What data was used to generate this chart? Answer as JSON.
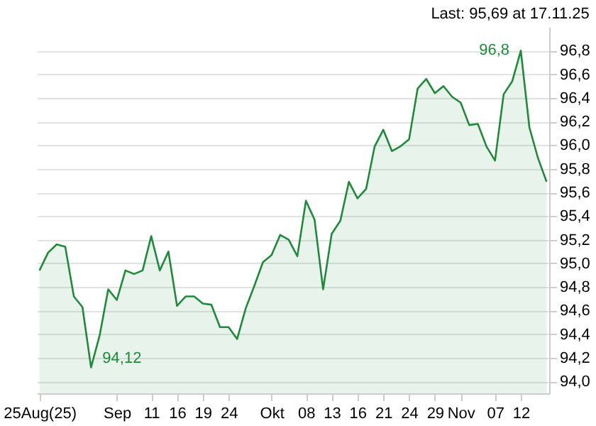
{
  "chart_data": {
    "type": "area",
    "title": "Last: 95,69 at 17.11.25",
    "categories": [
      "25Aug(25)",
      null,
      null,
      null,
      null,
      null,
      null,
      null,
      null,
      "Sep",
      null,
      null,
      null,
      "11",
      null,
      null,
      "16",
      null,
      null,
      "19",
      null,
      null,
      "24",
      null,
      null,
      null,
      null,
      "Okt",
      null,
      null,
      null,
      "08",
      null,
      null,
      "13",
      null,
      null,
      "16",
      null,
      null,
      "21",
      null,
      null,
      "24",
      null,
      null,
      "29",
      null,
      null,
      "Nov",
      null,
      null,
      null,
      "07",
      null,
      null,
      "12",
      null,
      null,
      null
    ],
    "series": [
      {
        "color": "#1f8a3a",
        "values": [
          94.94,
          95.09,
          95.16,
          95.14,
          94.72,
          94.63,
          94.12,
          94.39,
          94.78,
          94.69,
          94.94,
          94.91,
          94.94,
          95.23,
          94.94,
          95.1,
          94.64,
          94.72,
          94.72,
          94.66,
          94.65,
          94.46,
          94.46,
          94.36,
          94.62,
          94.81,
          95.01,
          95.07,
          95.24,
          95.2,
          95.06,
          95.53,
          95.37,
          94.78,
          95.25,
          95.36,
          95.69,
          95.55,
          95.63,
          95.99,
          96.13,
          95.95,
          95.99,
          96.05,
          96.48,
          96.56,
          96.44,
          96.5,
          96.41,
          96.36,
          96.17,
          96.18,
          95.99,
          95.87,
          96.43,
          96.54,
          96.8,
          96.15,
          95.89,
          95.69
        ]
      }
    ],
    "ylim": [
      93.9,
      97.0
    ],
    "yticks": [
      {
        "value": 94.0,
        "label": "94,0"
      },
      {
        "value": 94.2,
        "label": "94,2"
      },
      {
        "value": 94.4,
        "label": "94,4"
      },
      {
        "value": 94.6,
        "label": "94,6"
      },
      {
        "value": 94.8,
        "label": "94,8"
      },
      {
        "value": 95.0,
        "label": "95,0"
      },
      {
        "value": 95.2,
        "label": "95,2"
      },
      {
        "value": 95.4,
        "label": "95,4"
      },
      {
        "value": 95.6,
        "label": "95,6"
      },
      {
        "value": 95.8,
        "label": "95,8"
      },
      {
        "value": 96.0,
        "label": "96,0"
      },
      {
        "value": 96.2,
        "label": "96,2"
      },
      {
        "value": 96.4,
        "label": "96,4"
      },
      {
        "value": 96.6,
        "label": "96,6"
      },
      {
        "value": 96.8,
        "label": "96,8"
      }
    ],
    "grid": "y",
    "annotations": [
      "96,8",
      "94,12"
    ]
  }
}
